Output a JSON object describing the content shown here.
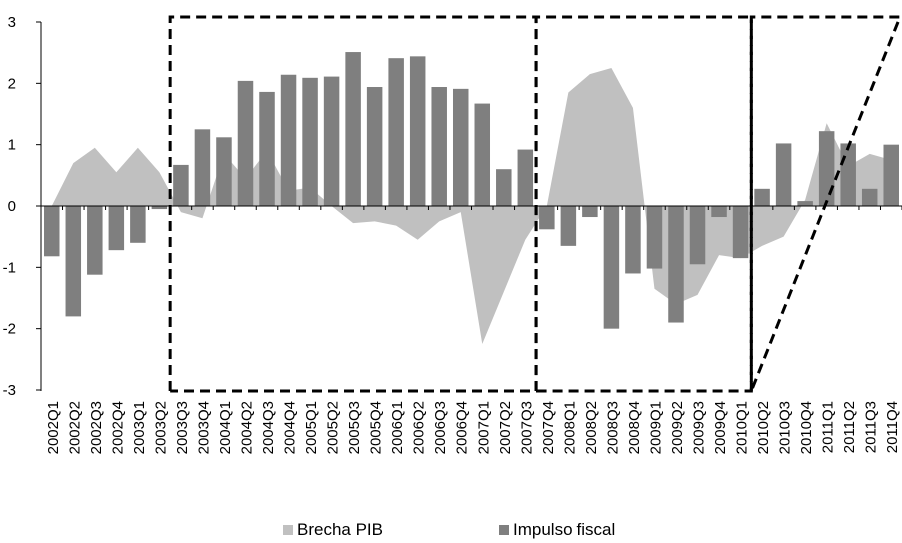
{
  "chart_data": {
    "type": "bar",
    "categories": [
      "2002Q1",
      "2002Q2",
      "2002Q3",
      "2002Q4",
      "2003Q1",
      "2003Q2",
      "2003Q3",
      "2003Q4",
      "2004Q1",
      "2004Q2",
      "2004Q3",
      "2004Q4",
      "2005Q1",
      "2005Q2",
      "2005Q3",
      "2005Q4",
      "2006Q1",
      "2006Q2",
      "2006Q3",
      "2006Q4",
      "2007Q1",
      "2007Q2",
      "2007Q3",
      "2007Q4",
      "2008Q1",
      "2008Q2",
      "2008Q3",
      "2008Q4",
      "2009Q1",
      "2009Q2",
      "2009Q3",
      "2009Q4",
      "2010Q1",
      "2010Q2",
      "2010Q3",
      "2010Q4",
      "2011Q1",
      "2011Q2",
      "2011Q3",
      "2011Q4"
    ],
    "series": [
      {
        "name": "Brecha PIB",
        "type": "area",
        "color": "#c0c0c0",
        "values": [
          0.0,
          0.7,
          0.95,
          0.55,
          0.95,
          0.55,
          -0.1,
          -0.2,
          0.85,
          0.45,
          0.9,
          0.25,
          0.3,
          0.0,
          -0.28,
          -0.25,
          -0.32,
          -0.55,
          -0.25,
          -0.1,
          -2.25,
          -1.4,
          -0.55,
          0.0,
          1.85,
          2.15,
          2.25,
          1.6,
          -1.35,
          -1.6,
          -1.45,
          -0.8,
          -0.85,
          -0.65,
          -0.5,
          0.1,
          1.35,
          0.65,
          0.85,
          0.75
        ]
      },
      {
        "name": "Impulso fiscal",
        "type": "bar",
        "color": "#7f7f7f",
        "values": [
          -0.82,
          -1.8,
          -1.12,
          -0.72,
          -0.6,
          -0.05,
          0.67,
          1.25,
          1.12,
          2.04,
          1.86,
          2.14,
          2.09,
          2.11,
          2.51,
          1.94,
          2.41,
          2.44,
          1.94,
          1.91,
          1.67,
          0.6,
          0.92,
          -0.38,
          -0.65,
          -0.18,
          -2.0,
          -1.1,
          -1.02,
          -1.9,
          -0.95,
          -0.18,
          -0.85,
          0.28,
          1.02,
          0.08,
          1.22,
          1.02,
          0.28,
          1.0
        ]
      }
    ],
    "yticks": [
      -3,
      -2,
      -1,
      0,
      1,
      2,
      3
    ],
    "ylim": [
      -3,
      3
    ],
    "highlight_periods": [
      [
        "2003Q3",
        "2007Q3"
      ],
      [
        "2007Q4",
        "2010Q1"
      ],
      [
        "2010Q2",
        "2011Q4"
      ]
    ],
    "grid": false,
    "legend_position": "bottom"
  },
  "legend": {
    "brecha_label": "Brecha PIB",
    "impulso_label_1": "Impulso",
    "impulso_label_2": "fiscal",
    "brecha_color": "#c0c0c0",
    "impulso_color": "#7f7f7f"
  }
}
